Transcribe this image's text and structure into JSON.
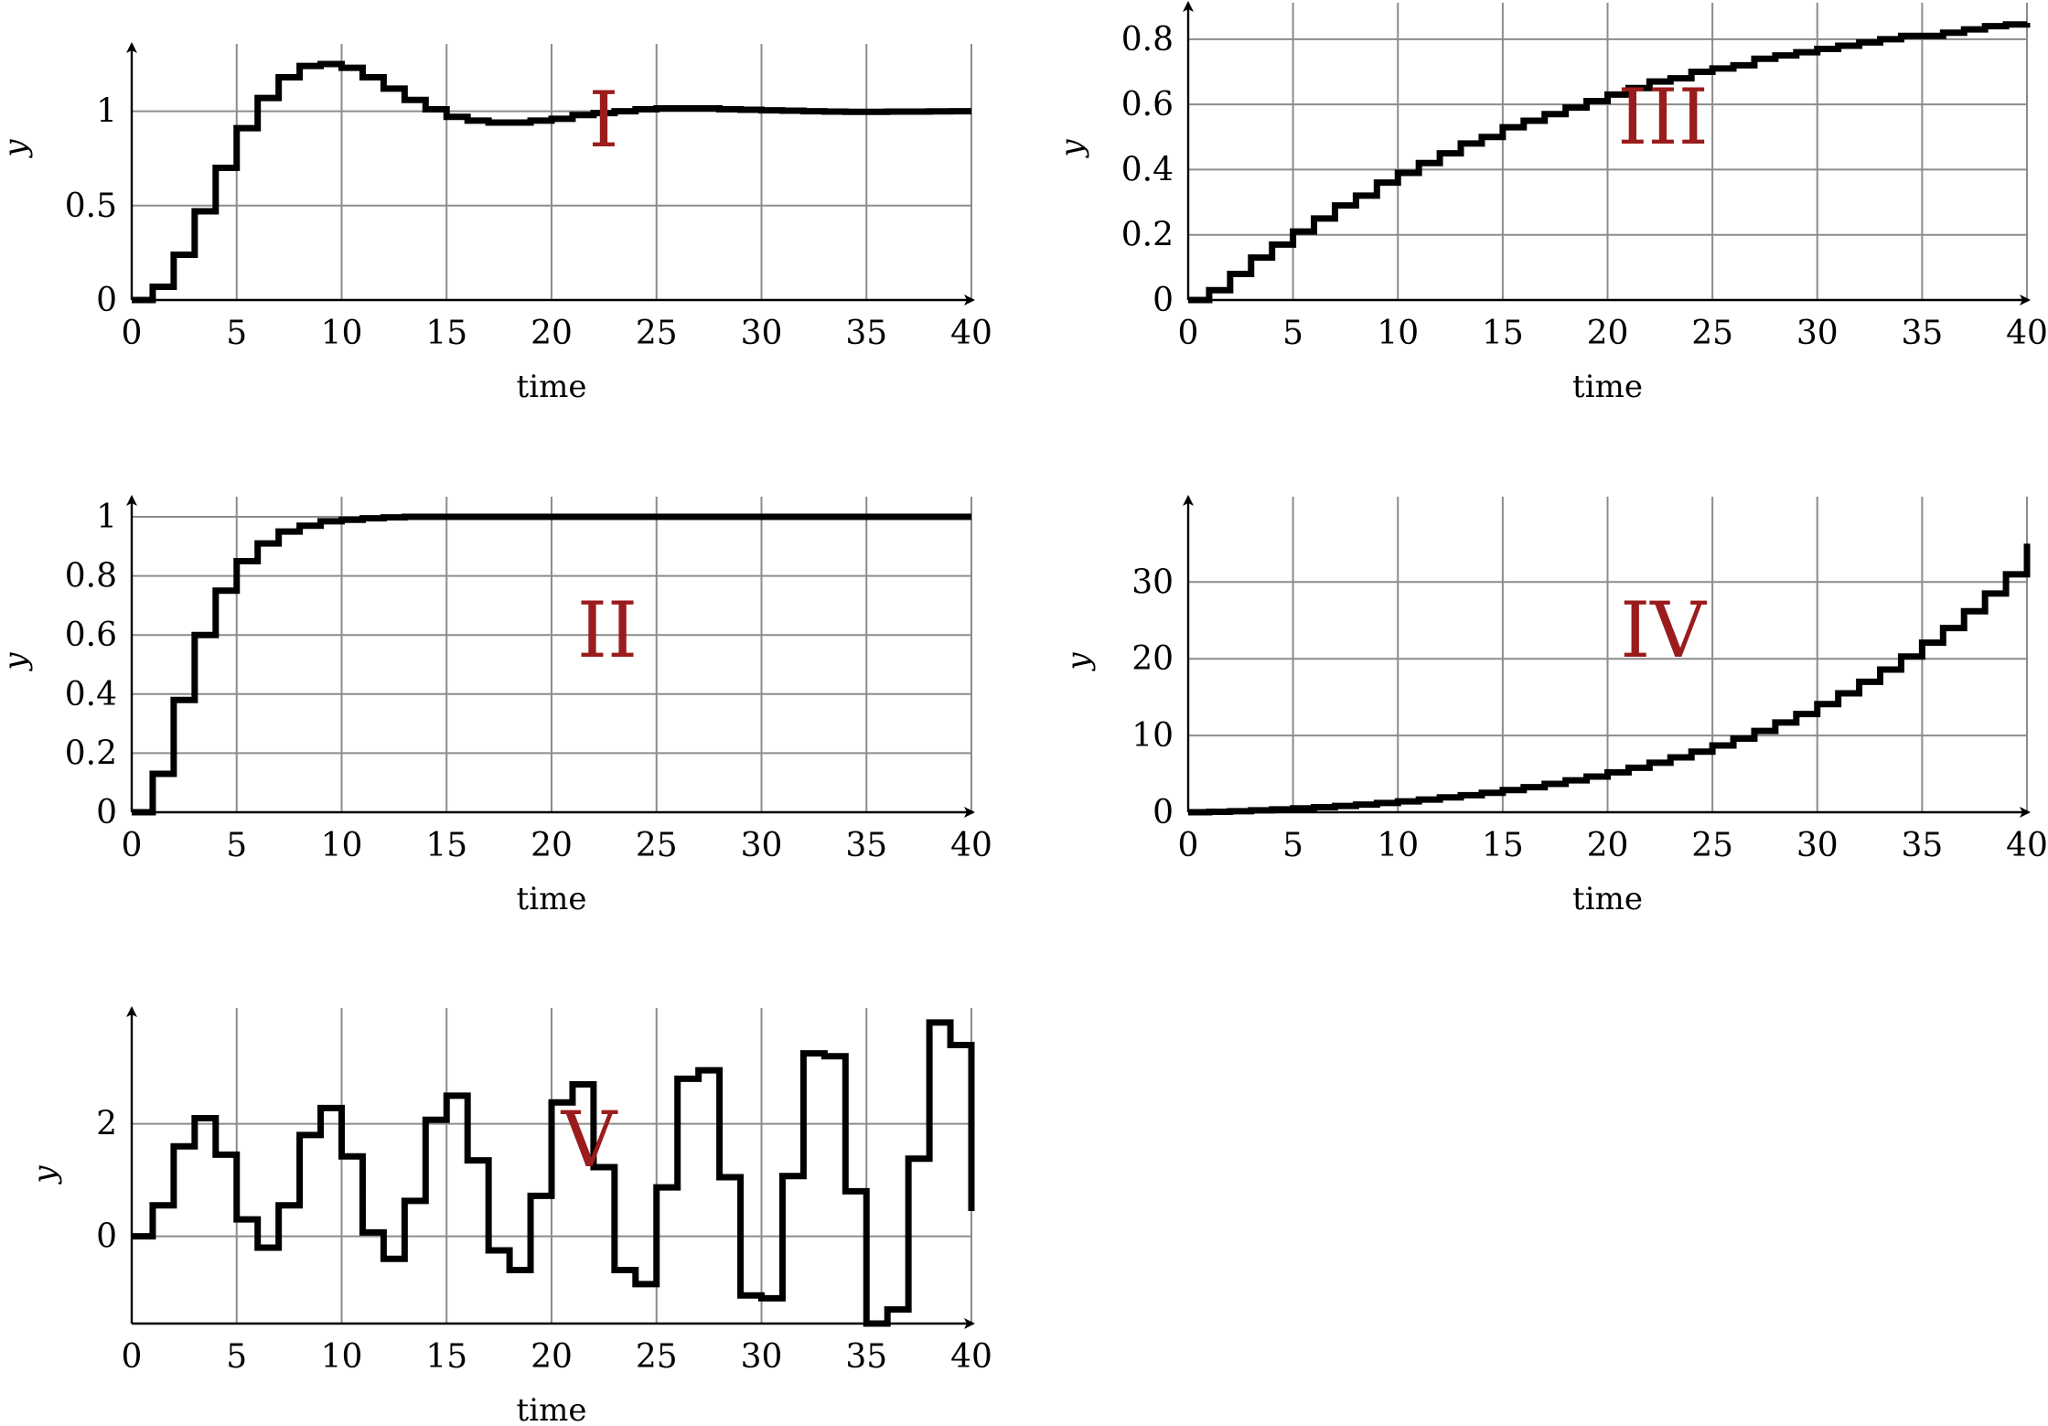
{
  "chart_data": [
    {
      "type": "line",
      "label": "I",
      "xlabel": "time",
      "ylabel": "y",
      "xlim": [
        0,
        40
      ],
      "ylim": [
        0,
        1.25
      ],
      "xticks": [
        "0",
        "5",
        "10",
        "15",
        "20",
        "25",
        "30",
        "35",
        "40"
      ],
      "yticks": [
        {
          "v": 0,
          "t": "0"
        },
        {
          "v": 0.5,
          "t": "0.5"
        },
        {
          "v": 1,
          "t": "1"
        }
      ],
      "series": [
        {
          "x": [
            0,
            1,
            2,
            3,
            4,
            5,
            6,
            7,
            8,
            9,
            10,
            11,
            12,
            13,
            14,
            15,
            16,
            17,
            18,
            19,
            20,
            21,
            22,
            23,
            24,
            25,
            26,
            27,
            28,
            29,
            30,
            31,
            32,
            33,
            34,
            35,
            36,
            37,
            38,
            39,
            40
          ],
          "values": [
            0,
            0.07,
            0.24,
            0.47,
            0.7,
            0.91,
            1.07,
            1.18,
            1.24,
            1.25,
            1.23,
            1.18,
            1.12,
            1.06,
            1.01,
            0.97,
            0.95,
            0.94,
            0.94,
            0.95,
            0.96,
            0.98,
            0.99,
            1.0,
            1.01,
            1.015,
            1.015,
            1.015,
            1.01,
            1.008,
            1.005,
            1.003,
            1.0,
            0.998,
            0.997,
            0.997,
            0.998,
            0.998,
            0.999,
            1.0,
            1.0
          ]
        }
      ]
    },
    {
      "type": "line",
      "label": "II",
      "xlabel": "time",
      "ylabel": "y",
      "xlim": [
        0,
        40
      ],
      "ylim": [
        0,
        1
      ],
      "xticks": [
        "0",
        "5",
        "10",
        "15",
        "20",
        "25",
        "30",
        "35",
        "40"
      ],
      "yticks": [
        {
          "v": 0,
          "t": "0"
        },
        {
          "v": 0.2,
          "t": "0.2"
        },
        {
          "v": 0.4,
          "t": "0.4"
        },
        {
          "v": 0.6,
          "t": "0.6"
        },
        {
          "v": 0.8,
          "t": "0.8"
        },
        {
          "v": 1,
          "t": "1"
        }
      ],
      "series": [
        {
          "x": [
            0,
            1,
            2,
            3,
            4,
            5,
            6,
            7,
            8,
            9,
            10,
            11,
            12,
            13,
            14,
            15,
            16,
            17,
            18,
            19,
            20,
            21,
            22,
            23,
            24,
            25,
            26,
            27,
            28,
            29,
            30,
            31,
            32,
            33,
            34,
            35,
            36,
            37,
            38,
            39,
            40
          ],
          "values": [
            0,
            0.13,
            0.38,
            0.6,
            0.75,
            0.85,
            0.91,
            0.95,
            0.97,
            0.985,
            0.99,
            0.995,
            0.998,
            1,
            1,
            1,
            1,
            1,
            1,
            1,
            1,
            1,
            1,
            1,
            1,
            1,
            1,
            1,
            1,
            1,
            1,
            1,
            1,
            1,
            1,
            1,
            1,
            1,
            1,
            1,
            1
          ]
        }
      ]
    },
    {
      "type": "line",
      "label": "III",
      "xlabel": "time",
      "ylabel": "y",
      "xlim": [
        0,
        40
      ],
      "ylim": [
        0,
        0.85
      ],
      "xticks": [
        "0",
        "5",
        "10",
        "15",
        "20",
        "25",
        "30",
        "35",
        "40"
      ],
      "yticks": [
        {
          "v": 0,
          "t": "0"
        },
        {
          "v": 0.2,
          "t": "0.2"
        },
        {
          "v": 0.4,
          "t": "0.4"
        },
        {
          "v": 0.6,
          "t": "0.6"
        },
        {
          "v": 0.8,
          "t": "0.8"
        }
      ],
      "series": [
        {
          "x": [
            0,
            1,
            2,
            3,
            4,
            5,
            6,
            7,
            8,
            9,
            10,
            11,
            12,
            13,
            14,
            15,
            16,
            17,
            18,
            19,
            20,
            21,
            22,
            23,
            24,
            25,
            26,
            27,
            28,
            29,
            30,
            31,
            32,
            33,
            34,
            35,
            36,
            37,
            38,
            39,
            40
          ],
          "values": [
            0,
            0.03,
            0.08,
            0.13,
            0.17,
            0.21,
            0.25,
            0.29,
            0.32,
            0.36,
            0.39,
            0.42,
            0.45,
            0.48,
            0.5,
            0.53,
            0.55,
            0.57,
            0.59,
            0.61,
            0.63,
            0.65,
            0.67,
            0.68,
            0.7,
            0.71,
            0.72,
            0.74,
            0.75,
            0.76,
            0.77,
            0.78,
            0.79,
            0.8,
            0.81,
            0.81,
            0.82,
            0.83,
            0.84,
            0.845,
            0.85
          ]
        }
      ]
    },
    {
      "type": "line",
      "label": "IV",
      "xlabel": "time",
      "ylabel": "y",
      "xlim": [
        0,
        40
      ],
      "ylim": [
        0,
        38.5
      ],
      "xticks": [
        "0",
        "5",
        "10",
        "15",
        "20",
        "25",
        "30",
        "35",
        "40"
      ],
      "yticks": [
        {
          "v": 0,
          "t": "0"
        },
        {
          "v": 10,
          "t": "10"
        },
        {
          "v": 20,
          "t": "20"
        },
        {
          "v": 30,
          "t": "30"
        }
      ],
      "series": [
        {
          "x": [
            0,
            1,
            2,
            3,
            4,
            5,
            6,
            7,
            8,
            9,
            10,
            11,
            12,
            13,
            14,
            15,
            16,
            17,
            18,
            19,
            20,
            21,
            22,
            23,
            24,
            25,
            26,
            27,
            28,
            29,
            30,
            31,
            32,
            33,
            34,
            35,
            36,
            37,
            38,
            39,
            40
          ],
          "values": [
            0,
            0.06,
            0.14,
            0.25,
            0.37,
            0.5,
            0.65,
            0.82,
            1.0,
            1.2,
            1.42,
            1.66,
            1.93,
            2.22,
            2.54,
            2.89,
            3.27,
            3.7,
            4.15,
            4.65,
            5.2,
            5.8,
            6.45,
            7.15,
            7.9,
            8.7,
            9.6,
            10.6,
            11.7,
            12.8,
            14.1,
            15.5,
            17.0,
            18.6,
            20.3,
            22.1,
            24.0,
            26.2,
            28.5,
            31.0,
            35.0
          ]
        }
      ]
    },
    {
      "type": "line",
      "label": "V",
      "xlabel": "time",
      "ylabel": "y",
      "xlim": [
        0,
        40
      ],
      "ylim": [
        -1.55,
        3.7
      ],
      "xticks": [
        "0",
        "5",
        "10",
        "15",
        "20",
        "25",
        "30",
        "35",
        "40"
      ],
      "yticks": [
        {
          "v": 0,
          "t": "0"
        },
        {
          "v": 2,
          "t": "2"
        }
      ],
      "series": [
        {
          "x": [
            0,
            1,
            2,
            3,
            4,
            5,
            6,
            7,
            8,
            9,
            10,
            11,
            12,
            13,
            14,
            15,
            16,
            17,
            18,
            19,
            20,
            21,
            22,
            23,
            24,
            25,
            26,
            27,
            28,
            29,
            30,
            31,
            32,
            33,
            34,
            35,
            36,
            37,
            38,
            39,
            40
          ],
          "values": [
            0,
            0.55,
            1.6,
            2.1,
            1.45,
            0.3,
            -0.2,
            0.55,
            1.8,
            2.28,
            1.42,
            0.07,
            -0.4,
            0.63,
            2.07,
            2.5,
            1.35,
            -0.25,
            -0.6,
            0.72,
            2.38,
            2.7,
            1.23,
            -0.6,
            -0.85,
            0.87,
            2.8,
            2.95,
            1.05,
            -1.05,
            -1.1,
            1.07,
            3.25,
            3.2,
            0.8,
            -1.55,
            -1.3,
            1.38,
            3.8,
            3.4,
            0.45
          ]
        }
      ]
    }
  ]
}
